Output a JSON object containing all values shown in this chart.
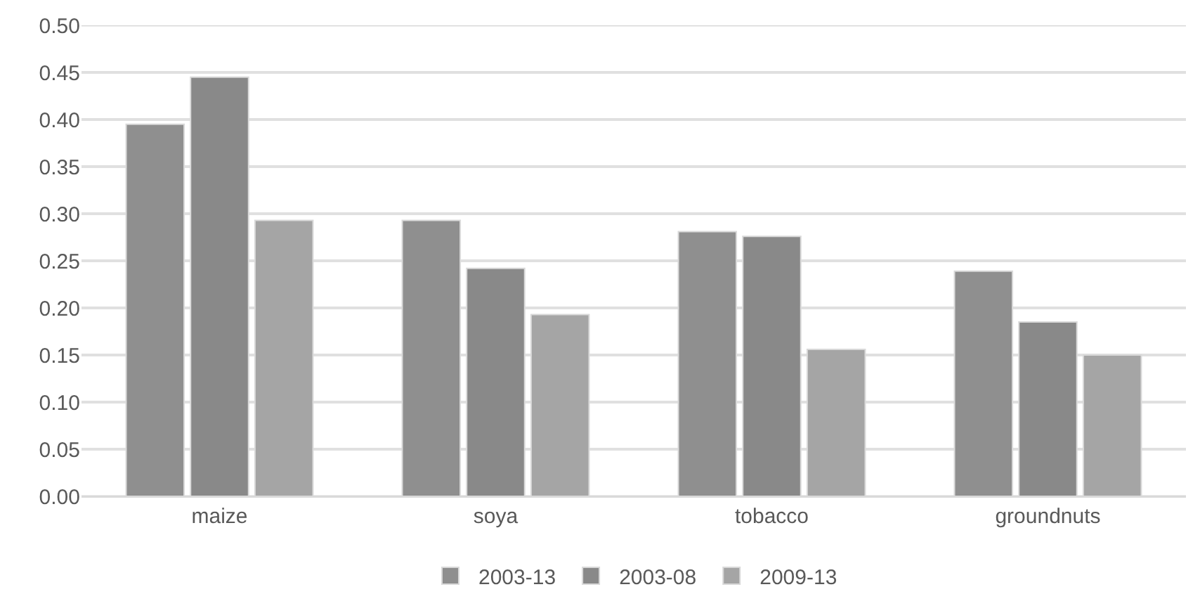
{
  "chart_data": {
    "type": "bar",
    "categories": [
      "maize",
      "soya",
      "tobacco",
      "groundnuts"
    ],
    "series": [
      {
        "name": "2003-13",
        "color": "#8f8f8f",
        "values": [
          0.395,
          0.293,
          0.281,
          0.239
        ]
      },
      {
        "name": "2003-08",
        "color": "#898989",
        "values": [
          0.445,
          0.242,
          0.276,
          0.185
        ]
      },
      {
        "name": "2009-13",
        "color": "#a5a5a5",
        "values": [
          0.293,
          0.193,
          0.156,
          0.15
        ]
      }
    ],
    "ylim": [
      0,
      0.5
    ],
    "yticks": [
      {
        "value": 0,
        "label": "0.00"
      },
      {
        "value": 0.05,
        "label": "0.05"
      },
      {
        "value": 0.1,
        "label": "0.10"
      },
      {
        "value": 0.15,
        "label": "0.15"
      },
      {
        "value": 0.2,
        "label": "0.20"
      },
      {
        "value": 0.25,
        "label": "0.25"
      },
      {
        "value": 0.3,
        "label": "0.30"
      },
      {
        "value": 0.35,
        "label": "0.35"
      },
      {
        "value": 0.4,
        "label": "0.40"
      },
      {
        "value": 0.45,
        "label": "0.45"
      },
      {
        "value": 0.5,
        "label": "0.50"
      }
    ],
    "grid": "y",
    "legend": "bottom"
  }
}
